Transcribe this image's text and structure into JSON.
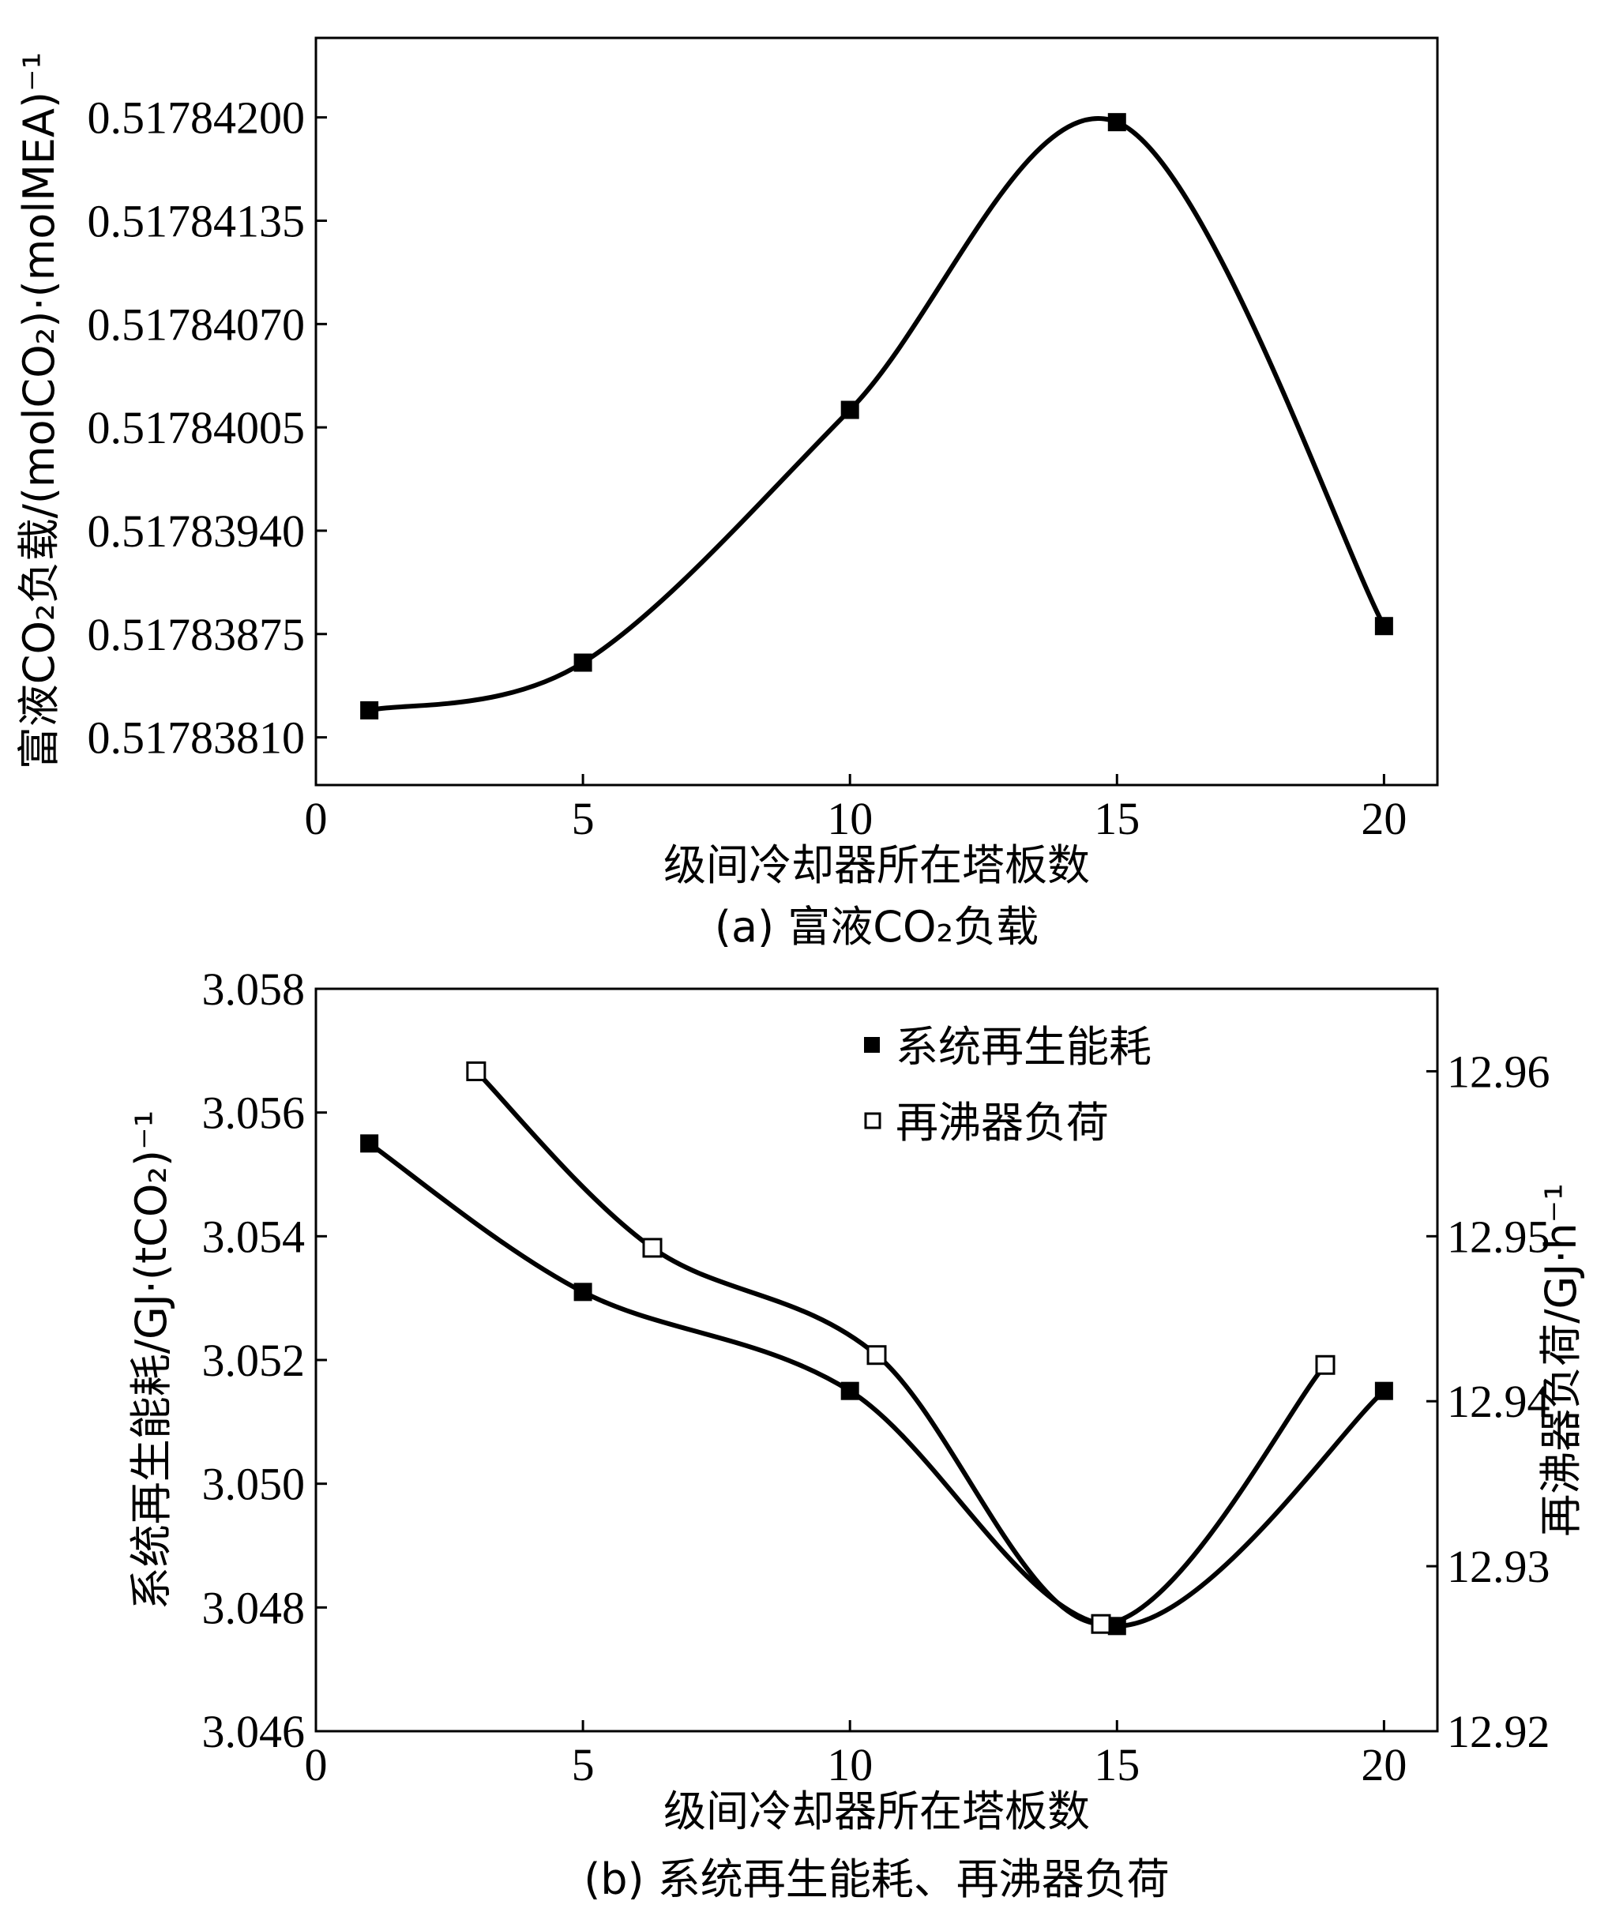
{
  "chart_data": [
    {
      "type": "line",
      "caption": "(a) 富液CO₂负载",
      "xlabel": "级间冷却器所在塔板数",
      "ylabel": "富液CO₂负载/(molCO₂)·(molMEA)⁻¹",
      "xlim": [
        0,
        21
      ],
      "ylim": [
        0.5178378,
        0.5178425
      ],
      "x_ticks": [
        "0",
        "5",
        "10",
        "15",
        "20"
      ],
      "y_ticks": [
        "0.51783810",
        "0.51783875",
        "0.51783940",
        "0.51784005",
        "0.51784070",
        "0.51784135",
        "0.51784200"
      ],
      "series": [
        {
          "marker": "filled-square",
          "x": [
            1,
            5,
            10,
            15,
            20
          ],
          "y": [
            0.51783827,
            0.51783857,
            0.51784016,
            0.51784197,
            0.5178388
          ]
        }
      ],
      "grid": false
    },
    {
      "type": "line",
      "caption": "(b) 系统再生能耗、再沸器负荷",
      "xlabel": "级间冷却器所在塔板数",
      "ylabel": "系统再生能耗/GJ·(tCO₂)⁻¹",
      "ylabel_right": "再沸器负荷/GJ·h⁻¹",
      "xlim": [
        0,
        21
      ],
      "ylim": [
        3.046,
        3.058
      ],
      "ylim_right": [
        12.92,
        12.965
      ],
      "x_ticks": [
        "0",
        "5",
        "10",
        "15",
        "20"
      ],
      "y_ticks": [
        "3.046",
        "3.048",
        "3.050",
        "3.052",
        "3.054",
        "3.056",
        "3.058"
      ],
      "y_ticks_right": [
        "12.92",
        "12.93",
        "12.94",
        "12.95",
        "12.96"
      ],
      "legend_position": "top-right",
      "series": [
        {
          "name": "系统再生能耗",
          "marker": "filled-square",
          "axis": "left",
          "x": [
            1,
            5,
            10,
            15,
            20
          ],
          "y": [
            3.0555,
            3.0531,
            3.0515,
            3.0477,
            3.0515
          ]
        },
        {
          "name": "再沸器负荷",
          "marker": "open-square",
          "axis": "right",
          "x": [
            3,
            6.3,
            10.5,
            14.7,
            18.9
          ],
          "y": [
            12.96,
            12.9493,
            12.9428,
            12.9265,
            12.9422
          ]
        }
      ],
      "grid": false
    }
  ]
}
